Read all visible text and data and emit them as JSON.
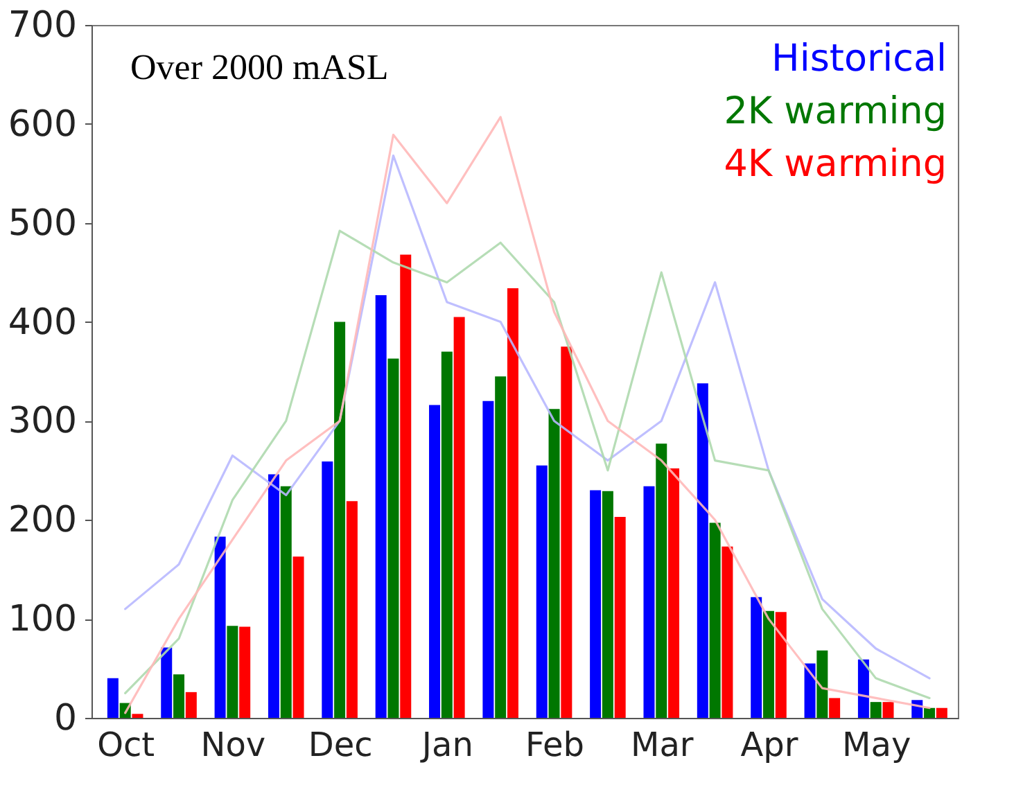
{
  "chart_data": {
    "type": "bar",
    "categories": [
      "Oct",
      null,
      "Nov",
      null,
      "Dec",
      null,
      "Jan",
      null,
      "Feb",
      null,
      "Mar",
      null,
      "Apr",
      null,
      "May",
      null
    ],
    "ylim": [
      0,
      700
    ],
    "yticks": [
      0,
      100,
      200,
      300,
      400,
      500,
      600,
      700
    ],
    "series": [
      {
        "type": "line",
        "color": "#b8b8ff",
        "values": [
          110,
          155,
          265,
          225,
          300,
          568,
          420,
          400,
          300,
          260,
          300,
          440,
          250,
          120,
          70,
          40
        ]
      },
      {
        "type": "line",
        "color": "#aed9ae",
        "values": [
          25,
          80,
          220,
          300,
          492,
          460,
          440,
          480,
          420,
          250,
          450,
          260,
          250,
          110,
          40,
          20
        ]
      },
      {
        "type": "line",
        "color": "#ffb8b8",
        "values": [
          5,
          100,
          180,
          260,
          300,
          589,
          520,
          607,
          410,
          300,
          260,
          200,
          100,
          30,
          20,
          10
        ]
      },
      {
        "name": "Historical",
        "color": "#0000ff",
        "values": [
          40,
          71,
          183,
          246,
          259,
          427,
          316,
          320,
          255,
          230,
          234,
          338,
          122,
          55,
          59,
          18
        ]
      },
      {
        "name": "2K warming",
        "color": "#007700",
        "values": [
          15,
          44,
          93,
          234,
          400,
          363,
          370,
          345,
          312,
          229,
          277,
          197,
          108,
          68,
          16,
          10
        ]
      },
      {
        "name": "4K warming",
        "color": "#ff0000",
        "values": [
          4,
          26,
          92,
          163,
          219,
          468,
          405,
          434,
          375,
          203,
          252,
          173,
          107,
          20,
          16,
          10
        ]
      }
    ],
    "legend": "top right",
    "annotations": [
      "Over 2000 mASL"
    ]
  }
}
